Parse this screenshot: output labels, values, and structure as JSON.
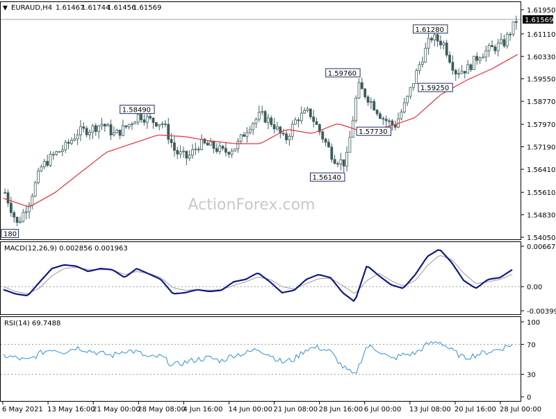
{
  "header": {
    "symbol": "EURAUD,H4",
    "open": "1.61467",
    "high": "1.61744",
    "low": "1.61456",
    "close": "1.61569",
    "current_price_label": "1.61569"
  },
  "watermark": "ActionForex.com",
  "colors": {
    "candles": "#3d5c5c",
    "moving_average": "#e8303a",
    "label_border": "#1a2a6c",
    "macd_line": "#0d1a80",
    "macd_signal": "#9a9a9a",
    "rsi_line": "#2f8fd8",
    "grid_dotted": "#9a9a9a",
    "panel_border": "#000000"
  },
  "chart_data": [
    {
      "type": "candlestick",
      "panel": "price",
      "y_ticks": [
        "1.61950",
        "1.61110",
        "1.60330",
        "1.59550",
        "1.58770",
        "1.57970",
        "1.57190",
        "1.56410",
        "1.55610",
        "1.54830",
        "1.54050"
      ],
      "ylim": [
        1.5405,
        1.6195
      ],
      "x_ticks": [
        "6 May 2021",
        "13 May 16:00",
        "21 May 00:00",
        "28 May 08:00",
        "4 Jun 16:00",
        "14 Jun 00:00",
        "21 Jun 08:00",
        "28 Jun 16:00",
        "6 Jul 00:00",
        "13 Jul 08:00",
        "20 Jul 16:00",
        "28 Jul 00:00"
      ],
      "close_series": [
        {
          "x": "6 May 2021",
          "y": 1.556
        },
        {
          "x": "8 May",
          "y": 1.545
        },
        {
          "x": "10 May",
          "y": 1.553
        },
        {
          "x": "12 May",
          "y": 1.565
        },
        {
          "x": "13 May",
          "y": 1.569
        },
        {
          "x": "15 May",
          "y": 1.572
        },
        {
          "x": "17 May",
          "y": 1.577
        },
        {
          "x": "19 May",
          "y": 1.578
        },
        {
          "x": "21 May",
          "y": 1.58
        },
        {
          "x": "24 May",
          "y": 1.576
        },
        {
          "x": "26 May",
          "y": 1.579
        },
        {
          "x": "28 May",
          "y": 1.583
        },
        {
          "x": "31 May",
          "y": 1.581
        },
        {
          "x": "2 Jun",
          "y": 1.58
        },
        {
          "x": "4 Jun",
          "y": 1.57
        },
        {
          "x": "7 Jun",
          "y": 1.568
        },
        {
          "x": "9 Jun",
          "y": 1.573
        },
        {
          "x": "11 Jun",
          "y": 1.572
        },
        {
          "x": "14 Jun",
          "y": 1.57
        },
        {
          "x": "16 Jun",
          "y": 1.572
        },
        {
          "x": "18 Jun",
          "y": 1.579
        },
        {
          "x": "21 Jun",
          "y": 1.583
        },
        {
          "x": "23 Jun",
          "y": 1.58
        },
        {
          "x": "25 Jun",
          "y": 1.574
        },
        {
          "x": "28 Jun",
          "y": 1.582
        },
        {
          "x": "30 Jun",
          "y": 1.584
        },
        {
          "x": "2 Jul",
          "y": 1.576
        },
        {
          "x": "5 Jul",
          "y": 1.568
        },
        {
          "x": "6 Jul",
          "y": 1.566
        },
        {
          "x": "8 Jul",
          "y": 1.593
        },
        {
          "x": "9 Jul",
          "y": 1.588
        },
        {
          "x": "12 Jul",
          "y": 1.582
        },
        {
          "x": "14 Jul",
          "y": 1.579
        },
        {
          "x": "15 Jul",
          "y": 1.588
        },
        {
          "x": "16 Jul",
          "y": 1.6
        },
        {
          "x": "19 Jul",
          "y": 1.61
        },
        {
          "x": "20 Jul",
          "y": 1.608
        },
        {
          "x": "21 Jul",
          "y": 1.598
        },
        {
          "x": "23 Jul",
          "y": 1.599
        },
        {
          "x": "26 Jul",
          "y": 1.604
        },
        {
          "x": "27 Jul",
          "y": 1.606
        },
        {
          "x": "28 Jul",
          "y": 1.608
        },
        {
          "x": "30 Jul",
          "y": 1.6157
        }
      ],
      "moving_average_series": [
        {
          "x": "6 May 2021",
          "y": 1.554
        },
        {
          "x": "10 May",
          "y": 1.551
        },
        {
          "x": "12 May",
          "y": 1.556
        },
        {
          "x": "15 May",
          "y": 1.563
        },
        {
          "x": "19 May",
          "y": 1.57
        },
        {
          "x": "24 May",
          "y": 1.573
        },
        {
          "x": "28 May",
          "y": 1.576
        },
        {
          "x": "2 Jun",
          "y": 1.5755
        },
        {
          "x": "7 Jun",
          "y": 1.574
        },
        {
          "x": "11 Jun",
          "y": 1.573
        },
        {
          "x": "16 Jun",
          "y": 1.573
        },
        {
          "x": "21 Jun",
          "y": 1.578
        },
        {
          "x": "25 Jun",
          "y": 1.5765
        },
        {
          "x": "30 Jun",
          "y": 1.58
        },
        {
          "x": "5 Jul",
          "y": 1.577
        },
        {
          "x": "9 Jul",
          "y": 1.579
        },
        {
          "x": "14 Jul",
          "y": 1.582
        },
        {
          "x": "19 Jul",
          "y": 1.59
        },
        {
          "x": "23 Jul",
          "y": 1.595
        },
        {
          "x": "27 Jul",
          "y": 1.599
        },
        {
          "x": "30 Jul",
          "y": 1.604
        }
      ],
      "annotations": [
        {
          "label": "1.58490",
          "value": 1.5849
        },
        {
          "label": "1.59760",
          "value": 1.5976
        },
        {
          "label": "1.61280",
          "value": 1.6128
        },
        {
          "label": "1.59250",
          "value": 1.5925
        },
        {
          "label": "1.57730",
          "value": 1.5773
        },
        {
          "label": "1.56140",
          "value": 1.5614
        },
        {
          "label": "180",
          "value": 1.5418
        }
      ]
    },
    {
      "type": "line",
      "panel": "macd",
      "title": "MACD(12,26,9) 0.002856 0.001963",
      "y_ticks": [
        "0.006679",
        "0.00",
        "-0.003994"
      ],
      "ylim": [
        -0.003994,
        0.006679
      ],
      "series": [
        {
          "role": "macd",
          "values": [
            -0.0005,
            -0.0012,
            -0.0015,
            0.0008,
            0.003,
            0.0036,
            0.0034,
            0.0025,
            0.003,
            0.0028,
            0.0015,
            0.003,
            0.0021,
            0.0012,
            -0.0012,
            -0.001,
            -0.0005,
            -0.0008,
            -0.0006,
            0.0008,
            0.0012,
            0.0023,
            0.0008,
            -0.001,
            -0.0006,
            0.0012,
            0.002,
            0.0015,
            -0.001,
            -0.0025,
            0.0035,
            0.0018,
            0.0003,
            -0.0003,
            0.002,
            0.005,
            0.0062,
            0.004,
            0.001,
            -0.0003,
            0.0012,
            0.0015,
            0.0028
          ]
        },
        {
          "role": "signal",
          "values": [
            0.0,
            -0.0008,
            -0.0012,
            -0.0002,
            0.0018,
            0.003,
            0.0032,
            0.0028,
            0.0028,
            0.0028,
            0.002,
            0.0025,
            0.0022,
            0.0015,
            -0.0002,
            -0.0006,
            -0.0005,
            -0.0006,
            -0.0005,
            0.0002,
            0.0008,
            0.0016,
            0.0012,
            0.0,
            -0.0004,
            0.0005,
            0.0013,
            0.0014,
            0.0002,
            -0.0012,
            0.001,
            0.0022,
            0.001,
            0.0001,
            0.001,
            0.0035,
            0.0052,
            0.0045,
            0.0022,
            0.0005,
            0.0008,
            0.0012,
            0.002
          ]
        }
      ]
    },
    {
      "type": "line",
      "panel": "rsi",
      "title": "RSI(14) 69.7488",
      "y_ticks": [
        "100",
        "70",
        "30",
        "0"
      ],
      "ylim": [
        0,
        100
      ],
      "series": [
        {
          "role": "rsi",
          "values": [
            55,
            52,
            48,
            58,
            64,
            60,
            66,
            62,
            58,
            55,
            62,
            60,
            52,
            54,
            42,
            46,
            50,
            52,
            48,
            56,
            58,
            64,
            56,
            46,
            50,
            64,
            66,
            60,
            40,
            28,
            68,
            62,
            50,
            56,
            58,
            70,
            74,
            62,
            52,
            56,
            60,
            64,
            70
          ]
        }
      ]
    }
  ]
}
